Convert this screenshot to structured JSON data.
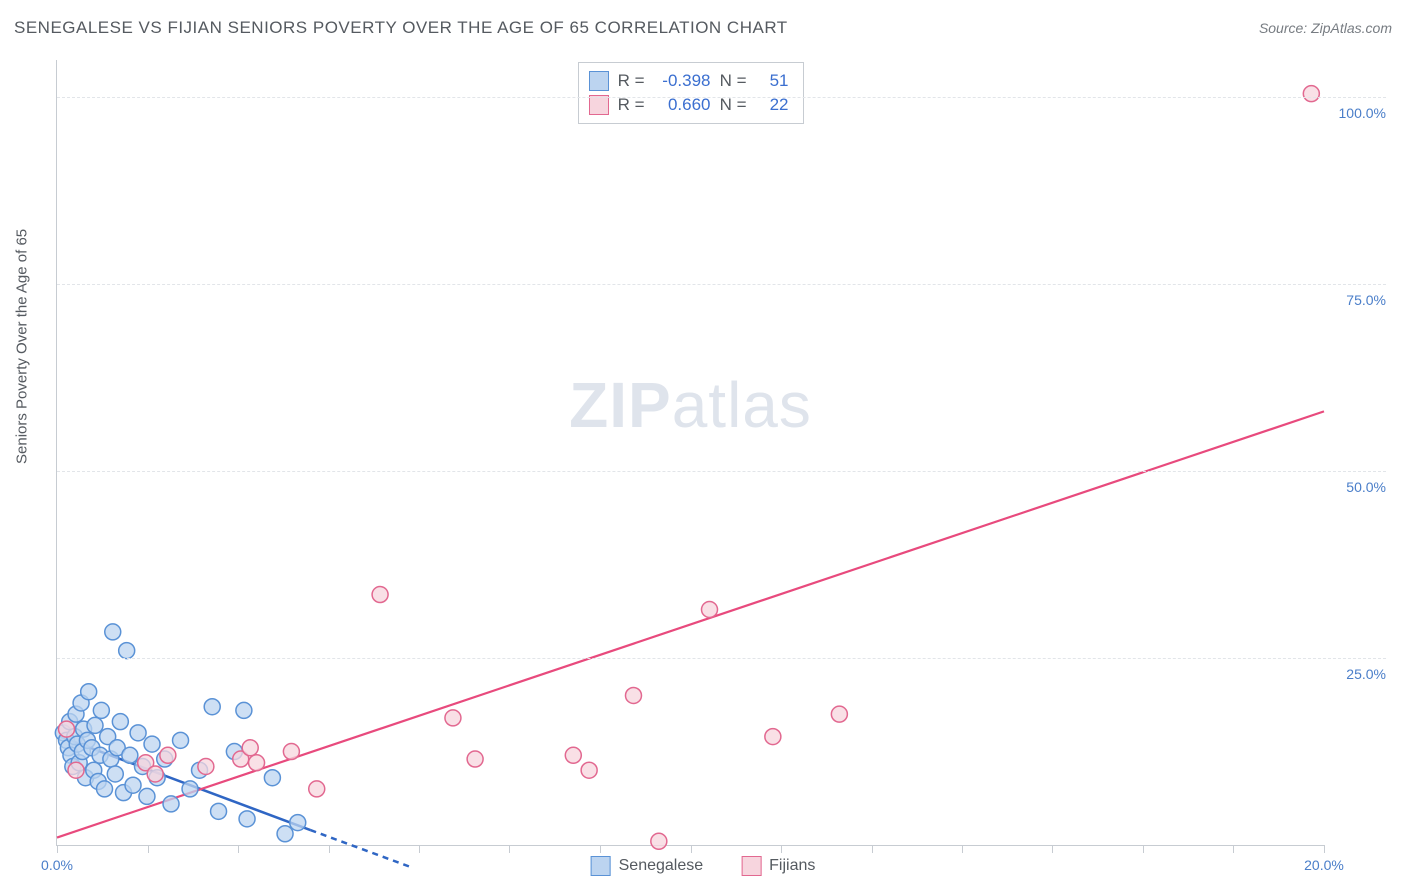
{
  "header": {
    "title": "SENEGALESE VS FIJIAN SENIORS POVERTY OVER THE AGE OF 65 CORRELATION CHART",
    "source": "Source: ZipAtlas.com"
  },
  "watermark": {
    "bold": "ZIP",
    "light": "atlas"
  },
  "chart": {
    "type": "scatter",
    "background_color": "#ffffff",
    "grid_color": "#e2e5e9",
    "axis_color": "#c7ccd2",
    "text_color": "#555a60",
    "value_color": "#3b6fd0",
    "y_axis_label": "Seniors Poverty Over the Age of 65",
    "xlim": [
      0,
      20
    ],
    "ylim": [
      0,
      105
    ],
    "x_ticks": [
      0,
      1.43,
      2.86,
      4.29,
      5.71,
      7.14,
      8.57,
      10.0,
      11.43,
      12.86,
      14.29,
      15.71,
      17.14,
      18.57,
      20.0
    ],
    "x_tick_labels": {
      "0": "0.0%",
      "20": "20.0%"
    },
    "y_ticks": [
      25,
      50,
      75,
      100
    ],
    "y_tick_labels": {
      "25": "25.0%",
      "50": "50.0%",
      "75": "75.0%",
      "100": "100.0%"
    },
    "label_fontsize": 15,
    "tick_fontsize": 14,
    "series": [
      {
        "name": "Senegalese",
        "fill_color": "#bcd4f0",
        "stroke_color": "#5a92d6",
        "marker_radius": 8,
        "line_color": "#2f66c4",
        "line_width": 2.5,
        "stats": {
          "R": "-0.398",
          "N": "51"
        },
        "regression": {
          "solid": [
            [
              0.05,
              14.5
            ],
            [
              4.0,
              2.0
            ]
          ],
          "dashed": [
            [
              4.0,
              2.0
            ],
            [
              5.6,
              -3.0
            ]
          ]
        },
        "points": [
          [
            0.1,
            15.0
          ],
          [
            0.15,
            14.0
          ],
          [
            0.18,
            13.0
          ],
          [
            0.2,
            16.5
          ],
          [
            0.22,
            12.0
          ],
          [
            0.25,
            10.5
          ],
          [
            0.28,
            14.5
          ],
          [
            0.3,
            17.5
          ],
          [
            0.32,
            13.5
          ],
          [
            0.35,
            11.0
          ],
          [
            0.38,
            19.0
          ],
          [
            0.4,
            12.5
          ],
          [
            0.42,
            15.5
          ],
          [
            0.45,
            9.0
          ],
          [
            0.48,
            14.0
          ],
          [
            0.5,
            20.5
          ],
          [
            0.55,
            13.0
          ],
          [
            0.58,
            10.0
          ],
          [
            0.6,
            16.0
          ],
          [
            0.65,
            8.5
          ],
          [
            0.68,
            12.0
          ],
          [
            0.7,
            18.0
          ],
          [
            0.75,
            7.5
          ],
          [
            0.8,
            14.5
          ],
          [
            0.85,
            11.5
          ],
          [
            0.88,
            28.5
          ],
          [
            0.92,
            9.5
          ],
          [
            0.95,
            13.0
          ],
          [
            1.0,
            16.5
          ],
          [
            1.05,
            7.0
          ],
          [
            1.1,
            26.0
          ],
          [
            1.15,
            12.0
          ],
          [
            1.2,
            8.0
          ],
          [
            1.28,
            15.0
          ],
          [
            1.35,
            10.5
          ],
          [
            1.42,
            6.5
          ],
          [
            1.5,
            13.5
          ],
          [
            1.58,
            9.0
          ],
          [
            1.7,
            11.5
          ],
          [
            1.8,
            5.5
          ],
          [
            1.95,
            14.0
          ],
          [
            2.1,
            7.5
          ],
          [
            2.25,
            10.0
          ],
          [
            2.45,
            18.5
          ],
          [
            2.55,
            4.5
          ],
          [
            2.8,
            12.5
          ],
          [
            2.95,
            18.0
          ],
          [
            3.0,
            3.5
          ],
          [
            3.4,
            9.0
          ],
          [
            3.8,
            3.0
          ],
          [
            3.6,
            1.5
          ]
        ]
      },
      {
        "name": "Fijians",
        "fill_color": "#f7d5de",
        "stroke_color": "#e26890",
        "marker_radius": 8,
        "line_color": "#e84a7d",
        "line_width": 2.2,
        "stats": {
          "R": "0.660",
          "N": "22"
        },
        "regression": {
          "solid": [
            [
              0.0,
              1.0
            ],
            [
              20.0,
              58.0
            ]
          ],
          "dashed": null
        },
        "points": [
          [
            0.15,
            15.5
          ],
          [
            0.3,
            10.0
          ],
          [
            1.4,
            11.0
          ],
          [
            1.55,
            9.5
          ],
          [
            1.75,
            12.0
          ],
          [
            2.35,
            10.5
          ],
          [
            2.9,
            11.5
          ],
          [
            3.05,
            13.0
          ],
          [
            3.15,
            11.0
          ],
          [
            3.7,
            12.5
          ],
          [
            4.1,
            7.5
          ],
          [
            5.1,
            33.5
          ],
          [
            6.25,
            17.0
          ],
          [
            6.6,
            11.5
          ],
          [
            8.15,
            12.0
          ],
          [
            8.4,
            10.0
          ],
          [
            9.1,
            20.0
          ],
          [
            9.5,
            0.5
          ],
          [
            10.3,
            31.5
          ],
          [
            11.3,
            14.5
          ],
          [
            12.35,
            17.5
          ],
          [
            19.8,
            100.5
          ]
        ]
      }
    ]
  },
  "stats_legend": {
    "r_label": "R =",
    "n_label": "N ="
  },
  "bottom_legend": {
    "items": [
      "Senegalese",
      "Fijians"
    ]
  }
}
